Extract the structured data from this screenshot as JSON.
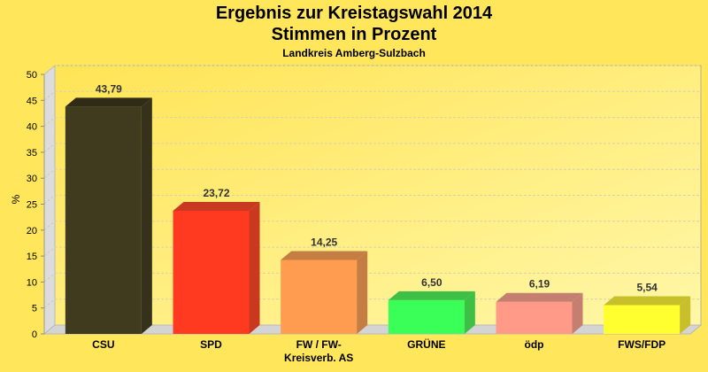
{
  "header": {
    "title": "Ergebnis zur Kreistagswahl 2014",
    "subtitle": "Stimmen in Prozent",
    "region": "Landkreis Amberg-Sulzbach"
  },
  "axis": {
    "ylabel": "%",
    "yticks": [
      "0",
      "5",
      "10",
      "15",
      "20",
      "25",
      "30",
      "35",
      "40",
      "45",
      "50"
    ]
  },
  "bars": [
    {
      "label_line1": "CSU",
      "label_line2": "",
      "value_label": "43,79",
      "value": 43.79,
      "color": "#403a1e",
      "side": "#36311a",
      "top": "#2f2b17"
    },
    {
      "label_line1": "SPD",
      "label_line2": "",
      "value_label": "23,72",
      "value": 23.72,
      "color": "#ff3a20",
      "side": "#c8391f",
      "top": "#c8391f"
    },
    {
      "label_line1": "FW / FW-",
      "label_line2": "Kreisverb. AS",
      "value_label": "14,25",
      "value": 14.25,
      "color": "#ff9c50",
      "side": "#c47e44",
      "top": "#c47e44"
    },
    {
      "label_line1": "GRÜNE",
      "label_line2": "",
      "value_label": "6,50",
      "value": 6.5,
      "color": "#3aff58",
      "side": "#3ebf45",
      "top": "#3ebf45"
    },
    {
      "label_line1": "ödp",
      "label_line2": "",
      "value_label": "6,19",
      "value": 6.19,
      "color": "#ff9a88",
      "side": "#c47f70",
      "top": "#c47f70"
    },
    {
      "label_line1": "FWS/FDP",
      "label_line2": "",
      "value_label": "5,54",
      "value": 5.54,
      "color": "#ffff30",
      "side": "#c8c02a",
      "top": "#c8c02a"
    }
  ],
  "chart_data": {
    "type": "bar",
    "title": "Ergebnis zur Kreistagswahl 2014",
    "subtitle": "Stimmen in Prozent",
    "caption": "Landkreis Amberg-Sulzbach",
    "categories": [
      "CSU",
      "SPD",
      "FW / FW-Kreisverb. AS",
      "GRÜNE",
      "ödp",
      "FWS/FDP"
    ],
    "values": [
      43.79,
      23.72,
      14.25,
      6.5,
      6.19,
      5.54
    ],
    "xlabel": "",
    "ylabel": "%",
    "ylim": [
      0,
      50
    ],
    "yticks": [
      0,
      5,
      10,
      15,
      20,
      25,
      30,
      35,
      40,
      45,
      50
    ],
    "grid": true,
    "legend": "none",
    "style": "3d"
  }
}
